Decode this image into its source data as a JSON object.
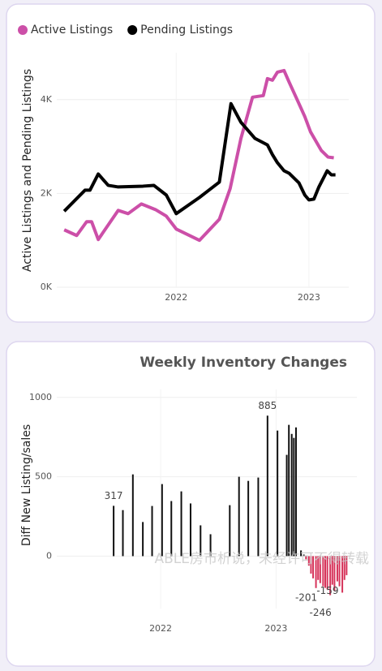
{
  "chart_data": [
    {
      "type": "line",
      "series": [
        {
          "name": "Active Listings",
          "color": "#cc4fa8",
          "x": [
            2021.156,
            2021.25,
            2021.325,
            2021.3625,
            2021.4125,
            2021.5625,
            2021.6375,
            2021.7375,
            2021.8438,
            2021.925,
            2022.0,
            2022.175,
            2022.325,
            2022.4063,
            2022.4875,
            2022.575,
            2022.6563,
            2022.6875,
            2022.725,
            2022.7625,
            2022.8125,
            2022.85,
            2022.925,
            2022.9688,
            2023.0125,
            2023.0938,
            2023.1438,
            2023.1875
          ],
          "values": [
            1224,
            1103,
            1397,
            1397,
            1017,
            1638,
            1569,
            1776,
            1655,
            1517,
            1241,
            1000,
            1448,
            2103,
            3172,
            4052,
            4086,
            4448,
            4414,
            4586,
            4621,
            4379,
            3914,
            3638,
            3310,
            2914,
            2776,
            2759
          ]
        },
        {
          "name": "Pending Listings",
          "color": "#000000",
          "x": [
            2021.156,
            2021.3125,
            2021.35,
            2021.4125,
            2021.4875,
            2021.5625,
            2021.75,
            2021.8313,
            2021.925,
            2022.0,
            2022.175,
            2022.325,
            2022.4125,
            2022.4875,
            2022.5938,
            2022.6875,
            2022.725,
            2022.7625,
            2022.8125,
            2022.85,
            2022.925,
            2022.9688,
            2023.0,
            2023.0375,
            2023.075,
            2023.1375,
            2023.1688,
            2023.2
          ],
          "values": [
            1621,
            2069,
            2069,
            2414,
            2172,
            2138,
            2155,
            2172,
            1966,
            1569,
            1914,
            2241,
            3914,
            3517,
            3172,
            3034,
            2828,
            2655,
            2483,
            2431,
            2224,
            1966,
            1862,
            1879,
            2138,
            2483,
            2397,
            2397
          ]
        }
      ],
      "ylabel": "Active Listings and Pending Listings",
      "xlim": [
        2021.1,
        2023.3
      ],
      "xticks": [
        2022,
        2023
      ],
      "ylim": [
        0,
        5000
      ],
      "yticks": [
        {
          "value": 0,
          "label": "0K"
        },
        {
          "value": 2000,
          "label": "2K"
        },
        {
          "value": 4000,
          "label": "4K"
        }
      ],
      "grid": true,
      "legend": "top-left"
    },
    {
      "type": "bar",
      "title": "Weekly Inventory Changes",
      "ylabel": "Diff New Listing/sales",
      "watermark": "ABLE房市析说，未经许可不得转载",
      "x": [
        2021.5926,
        2021.6728,
        2021.7593,
        2021.8457,
        2021.9259,
        2022.0123,
        2022.0926,
        2022.179,
        2022.2593,
        2022.3457,
        2022.4321,
        2022.5988,
        2022.679,
        2022.7593,
        2022.8457,
        2022.9259,
        2023.0123,
        2023.0926,
        2023.1111,
        2023.1358,
        2023.1543,
        2023.1728,
        2023.216,
        2023.2407,
        2023.2593,
        2023.284,
        2023.3025,
        2023.321,
        2023.3457,
        2023.3642,
        2023.3827,
        2023.4074,
        2023.4259,
        2023.4444,
        2023.4691,
        2023.4877,
        2023.5062,
        2023.5309,
        2023.5494,
        2023.5741,
        2023.5926,
        2023.6111
      ],
      "values": [
        317,
        290,
        515,
        215,
        316,
        454,
        347,
        408,
        332,
        194,
        138,
        321,
        500,
        474,
        495,
        885,
        791,
        638,
        827,
        770,
        745,
        811,
        36,
        10,
        -20,
        -60,
        -110,
        -140,
        -201,
        -150,
        -170,
        -190,
        -200,
        -210,
        -246,
        -180,
        -220,
        -159,
        -190,
        -230,
        -150,
        -120
      ],
      "value_labels": [
        "317",
        null,
        null,
        null,
        null,
        null,
        null,
        null,
        null,
        null,
        null,
        null,
        null,
        null,
        null,
        "885",
        null,
        null,
        null,
        null,
        null,
        null,
        null,
        null,
        null,
        null,
        null,
        null,
        "-201",
        null,
        null,
        null,
        null,
        null,
        "-246",
        null,
        null,
        "-159",
        null,
        null,
        null,
        null
      ],
      "positive_color": "#111111",
      "negative_color": "#d6335a",
      "xlim": [
        2021.1,
        2023.7
      ],
      "xticks": [
        2022,
        2023
      ],
      "ylim": [
        -330,
        1050
      ],
      "yticks": [
        0,
        500,
        1000
      ],
      "grid": true
    }
  ]
}
